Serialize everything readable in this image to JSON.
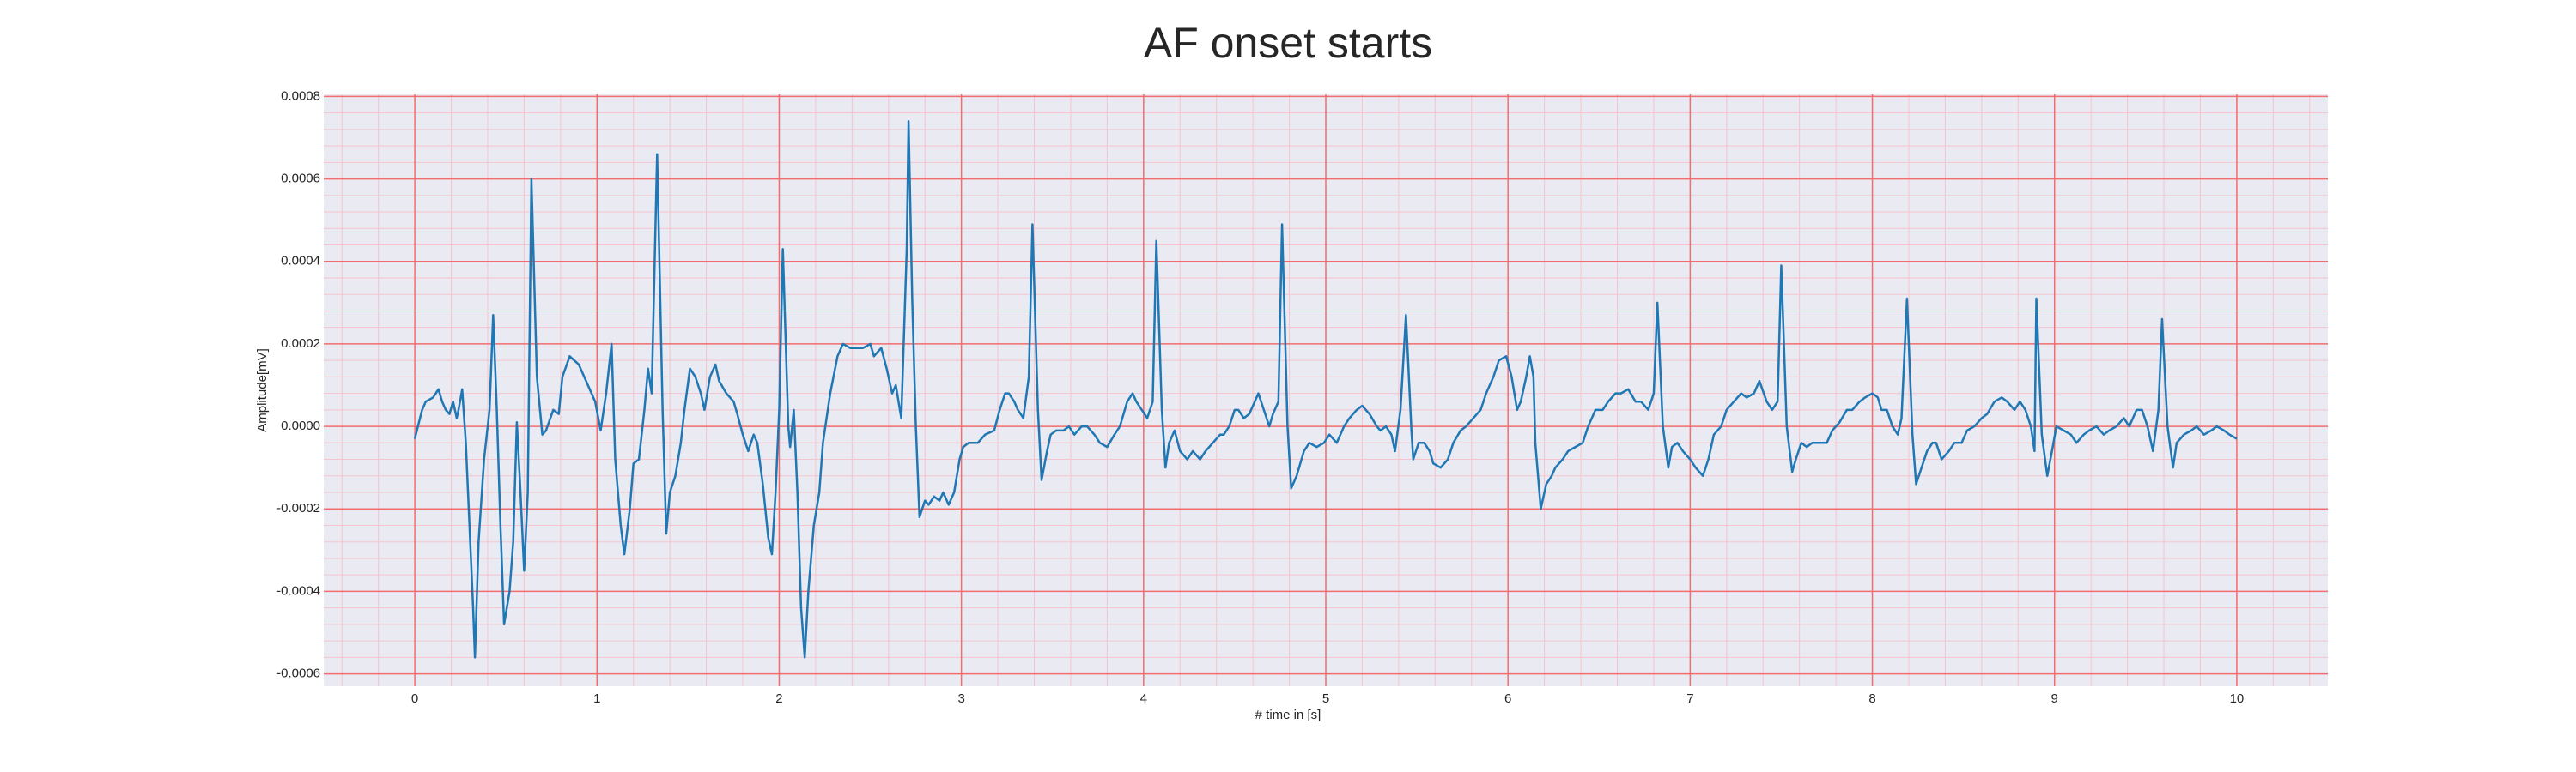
{
  "chart_data": {
    "type": "line",
    "title": "AF onset starts",
    "xlabel": "# time in [s]",
    "ylabel": "Amplitude[mV]",
    "color": "#1f77b4",
    "grid": true,
    "grid_color": "#f26d6d",
    "minor_grid_color": "#f5c4cc",
    "background": "#eaeaf2",
    "xlim": [
      -0.5,
      10.5
    ],
    "xticks": [
      0,
      1,
      2,
      3,
      4,
      5,
      6,
      7,
      8,
      9,
      10
    ],
    "xminorticks": [
      -0.4,
      -0.2,
      0.2,
      0.4,
      0.6,
      0.8,
      1.2,
      1.4,
      1.6,
      1.8,
      2.2,
      2.4,
      2.6,
      2.8,
      3.2,
      3.4,
      3.6,
      3.8,
      4.2,
      4.4,
      4.6,
      4.8,
      5.2,
      5.4,
      5.6,
      5.8,
      6.2,
      6.4,
      6.6,
      6.8,
      7.2,
      7.4,
      7.6,
      7.8,
      8.2,
      8.4,
      8.6,
      8.8,
      9.2,
      9.4,
      9.6,
      9.8,
      10.2,
      10.4
    ],
    "ylim": [
      -0.00063,
      0.000805
    ],
    "yticks": [
      -0.0006,
      -0.0004,
      -0.0002,
      {
        "value": 0,
        "label": "0.0000"
      },
      0.0002,
      0.0004,
      0.0006,
      0.0008
    ],
    "yminorticks": [
      -0.00056,
      -0.00052,
      -0.00048,
      -0.00044,
      -0.00036,
      -0.00032,
      -0.00028,
      -0.00024,
      -0.00016,
      -0.00012,
      -8e-05,
      -4e-05,
      4e-05,
      8e-05,
      0.00012,
      0.00016,
      0.00024,
      0.00028,
      0.00032,
      0.00036,
      0.00044,
      0.00048,
      0.00052,
      0.00056,
      0.00064,
      0.00068,
      0.00072,
      0.00076
    ],
    "x": [
      0.0,
      0.04,
      0.06,
      0.1,
      0.13,
      0.15,
      0.17,
      0.19,
      0.21,
      0.23,
      0.24,
      0.26,
      0.28,
      0.3,
      0.32,
      0.33,
      0.35,
      0.38,
      0.41,
      0.43,
      0.45,
      0.47,
      0.49,
      0.52,
      0.54,
      0.56,
      0.58,
      0.6,
      0.62,
      0.64,
      0.67,
      0.7,
      0.72,
      0.76,
      0.79,
      0.81,
      0.85,
      0.9,
      0.94,
      0.99,
      1.02,
      1.05,
      1.08,
      1.1,
      1.13,
      1.15,
      1.18,
      1.2,
      1.23,
      1.26,
      1.28,
      1.3,
      1.33,
      1.36,
      1.38,
      1.4,
      1.43,
      1.46,
      1.48,
      1.51,
      1.54,
      1.57,
      1.59,
      1.62,
      1.65,
      1.67,
      1.71,
      1.75,
      1.77,
      1.8,
      1.83,
      1.86,
      1.88,
      1.91,
      1.94,
      1.96,
      1.98,
      2.0,
      2.02,
      2.05,
      2.06,
      2.08,
      2.1,
      2.12,
      2.14,
      2.16,
      2.19,
      2.22,
      2.24,
      2.28,
      2.32,
      2.35,
      2.39,
      2.43,
      2.46,
      2.5,
      2.52,
      2.56,
      2.59,
      2.62,
      2.64,
      2.67,
      2.7,
      2.71,
      2.73,
      2.75,
      2.77,
      2.8,
      2.82,
      2.85,
      2.88,
      2.9,
      2.93,
      2.96,
      2.99,
      3.01,
      3.04,
      3.09,
      3.13,
      3.18,
      3.21,
      3.24,
      3.26,
      3.29,
      3.31,
      3.34,
      3.37,
      3.39,
      3.42,
      3.44,
      3.47,
      3.49,
      3.52,
      3.56,
      3.59,
      3.62,
      3.66,
      3.69,
      3.73,
      3.76,
      3.8,
      3.84,
      3.87,
      3.91,
      3.94,
      3.96,
      3.99,
      4.02,
      4.05,
      4.07,
      4.1,
      4.12,
      4.14,
      4.17,
      4.2,
      4.24,
      4.27,
      4.31,
      4.34,
      4.38,
      4.42,
      4.44,
      4.47,
      4.5,
      4.52,
      4.55,
      4.58,
      4.61,
      4.63,
      4.66,
      4.69,
      4.71,
      4.74,
      4.76,
      4.79,
      4.81,
      4.84,
      4.88,
      4.91,
      4.95,
      4.99,
      5.02,
      5.06,
      5.1,
      5.13,
      5.17,
      5.2,
      5.24,
      5.28,
      5.3,
      5.33,
      5.36,
      5.38,
      5.41,
      5.44,
      5.47,
      5.48,
      5.51,
      5.54,
      5.57,
      5.59,
      5.63,
      5.67,
      5.7,
      5.74,
      5.77,
      5.81,
      5.85,
      5.88,
      5.92,
      5.95,
      5.99,
      6.02,
      6.05,
      6.07,
      6.1,
      6.12,
      6.14,
      6.15,
      6.18,
      6.21,
      6.24,
      6.26,
      6.3,
      6.33,
      6.37,
      6.41,
      6.44,
      6.48,
      6.52,
      6.55,
      6.59,
      6.62,
      6.66,
      6.7,
      6.73,
      6.77,
      6.8,
      6.82,
      6.85,
      6.88,
      6.9,
      6.93,
      6.96,
      7.0,
      7.03,
      7.07,
      7.1,
      7.13,
      7.17,
      7.2,
      7.24,
      7.28,
      7.31,
      7.35,
      7.38,
      7.42,
      7.45,
      7.48,
      7.5,
      7.53,
      7.56,
      7.58,
      7.61,
      7.64,
      7.67,
      7.71,
      7.75,
      7.78,
      7.82,
      7.86,
      7.89,
      7.93,
      7.96,
      8.0,
      8.03,
      8.05,
      8.08,
      8.11,
      8.14,
      8.16,
      8.19,
      8.22,
      8.24,
      8.27,
      8.3,
      8.33,
      8.35,
      8.38,
      8.42,
      8.45,
      8.49,
      8.52,
      8.56,
      8.6,
      8.63,
      8.67,
      8.71,
      8.74,
      8.78,
      8.81,
      8.84,
      8.87,
      8.89,
      8.9,
      8.93,
      8.96,
      8.99,
      9.01,
      9.05,
      9.09,
      9.12,
      9.16,
      9.19,
      9.23,
      9.27,
      9.3,
      9.34,
      9.38,
      9.41,
      9.45,
      9.48,
      9.51,
      9.54,
      9.57,
      9.59,
      9.62,
      9.65,
      9.67,
      9.71,
      9.75,
      9.78,
      9.82,
      9.86,
      9.89,
      9.93,
      9.96,
      10.0
    ],
    "values": [
      -3e-05,
      4e-05,
      6e-05,
      7e-05,
      9e-05,
      6e-05,
      4e-05,
      3e-05,
      6e-05,
      2e-05,
      4e-05,
      9e-05,
      -4e-05,
      -0.00024,
      -0.00044,
      -0.00056,
      -0.00028,
      -8e-05,
      4e-05,
      0.00027,
      4e-05,
      -0.00024,
      -0.00048,
      -0.0004,
      -0.00028,
      1e-05,
      -0.00016,
      -0.00035,
      -0.00016,
      0.0006,
      0.00012,
      -2e-05,
      -1e-05,
      4e-05,
      3e-05,
      0.00012,
      0.00017,
      0.00015,
      0.00011,
      6e-05,
      -1e-05,
      8e-05,
      0.0002,
      -8e-05,
      -0.00024,
      -0.00031,
      -0.0002,
      -9e-05,
      -8e-05,
      4e-05,
      0.00014,
      8e-05,
      0.00066,
      4e-05,
      -0.00026,
      -0.00016,
      -0.00012,
      -4e-05,
      4e-05,
      0.00014,
      0.00012,
      8e-05,
      4e-05,
      0.00012,
      0.00015,
      0.00011,
      8e-05,
      6e-05,
      3e-05,
      -2e-05,
      -6e-05,
      -2e-05,
      -4e-05,
      -0.00014,
      -0.00027,
      -0.00031,
      -0.00016,
      4e-05,
      0.00043,
      0,
      -5e-05,
      4e-05,
      -0.00016,
      -0.00044,
      -0.00056,
      -0.0004,
      -0.00024,
      -0.00016,
      -4e-05,
      8e-05,
      0.00017,
      0.0002,
      0.00019,
      0.00019,
      0.00019,
      0.0002,
      0.00017,
      0.00019,
      0.00014,
      8e-05,
      0.0001,
      2e-05,
      0.00043,
      0.00074,
      0.00031,
      0,
      -0.00022,
      -0.00018,
      -0.00019,
      -0.00017,
      -0.00018,
      -0.00016,
      -0.00019,
      -0.00016,
      -8e-05,
      -5e-05,
      -4e-05,
      -4e-05,
      -2e-05,
      -1e-05,
      4e-05,
      8e-05,
      8e-05,
      6e-05,
      4e-05,
      2e-05,
      0.00012,
      0.00049,
      4e-05,
      -0.00013,
      -6e-05,
      -2e-05,
      -1e-05,
      -1e-05,
      0,
      -2e-05,
      0,
      0,
      -2e-05,
      -4e-05,
      -5e-05,
      -2e-05,
      0,
      6e-05,
      8e-05,
      6e-05,
      4e-05,
      2e-05,
      6e-05,
      0.00045,
      4e-05,
      -0.0001,
      -4e-05,
      -1e-05,
      -6e-05,
      -8e-05,
      -6e-05,
      -8e-05,
      -6e-05,
      -4e-05,
      -2e-05,
      -2e-05,
      0,
      4e-05,
      4e-05,
      2e-05,
      3e-05,
      6e-05,
      8e-05,
      4e-05,
      0,
      3e-05,
      6e-05,
      0.00049,
      0,
      -0.00015,
      -0.00012,
      -6e-05,
      -4e-05,
      -5e-05,
      -4e-05,
      -2e-05,
      -4e-05,
      0,
      2e-05,
      4e-05,
      5e-05,
      3e-05,
      0,
      -1e-05,
      0,
      -2e-05,
      -6e-05,
      4e-05,
      0.00027,
      -1e-05,
      -8e-05,
      -4e-05,
      -4e-05,
      -6e-05,
      -9e-05,
      -0.0001,
      -8e-05,
      -4e-05,
      -1e-05,
      0,
      2e-05,
      4e-05,
      8e-05,
      0.00012,
      0.00016,
      0.00017,
      0.00012,
      4e-05,
      6e-05,
      0.00012,
      0.00017,
      0.00012,
      -4e-05,
      -0.0002,
      -0.00014,
      -0.00012,
      -0.0001,
      -8e-05,
      -6e-05,
      -5e-05,
      -4e-05,
      0,
      4e-05,
      4e-05,
      6e-05,
      8e-05,
      8e-05,
      9e-05,
      6e-05,
      6e-05,
      4e-05,
      8e-05,
      0.0003,
      0,
      -0.0001,
      -5e-05,
      -4e-05,
      -6e-05,
      -8e-05,
      -0.0001,
      -0.00012,
      -8e-05,
      -2e-05,
      0,
      4e-05,
      6e-05,
      8e-05,
      7e-05,
      8e-05,
      0.00011,
      6e-05,
      4e-05,
      6e-05,
      0.00039,
      0,
      -0.00011,
      -8e-05,
      -4e-05,
      -5e-05,
      -4e-05,
      -4e-05,
      -4e-05,
      -1e-05,
      1e-05,
      4e-05,
      4e-05,
      6e-05,
      7e-05,
      8e-05,
      7e-05,
      4e-05,
      4e-05,
      0,
      -2e-05,
      2e-05,
      0.00031,
      -2e-05,
      -0.00014,
      -0.0001,
      -6e-05,
      -4e-05,
      -4e-05,
      -8e-05,
      -6e-05,
      -4e-05,
      -4e-05,
      -1e-05,
      0,
      2e-05,
      3e-05,
      6e-05,
      7e-05,
      6e-05,
      4e-05,
      6e-05,
      4e-05,
      0,
      -6e-05,
      0.00031,
      -2e-05,
      -0.00012,
      -5e-05,
      0,
      -1e-05,
      -2e-05,
      -4e-05,
      -2e-05,
      -1e-05,
      0,
      -2e-05,
      -1e-05,
      0,
      2e-05,
      0,
      4e-05,
      4e-05,
      0,
      -6e-05,
      4e-05,
      0.00026,
      0,
      -0.0001,
      -4e-05,
      -2e-05,
      -1e-05,
      0,
      -2e-05,
      -1e-05,
      0,
      -1e-05,
      -2e-05,
      -3e-05
    ]
  }
}
